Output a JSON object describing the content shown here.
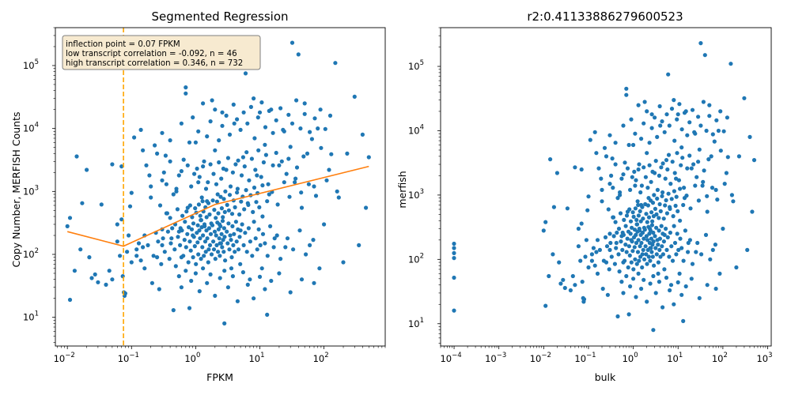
{
  "chart_data": [
    {
      "type": "scatter",
      "title": "Segmented Regression",
      "xlabel": "FPKM",
      "ylabel": "Copy Number, MERFISH Counts",
      "xscale": "log",
      "yscale": "log",
      "xlim": [
        0.0065,
        900
      ],
      "ylim": [
        3.5,
        400000
      ],
      "xticks": [
        {
          "v": 0.01,
          "m": "10",
          "e": "−2"
        },
        {
          "v": 0.1,
          "m": "10",
          "e": "−1"
        },
        {
          "v": 1,
          "m": "10",
          "e": "0"
        },
        {
          "v": 10,
          "m": "10",
          "e": "1"
        },
        {
          "v": 100,
          "m": "10",
          "e": "2"
        }
      ],
      "yticks": [
        {
          "v": 10,
          "m": "10",
          "e": "1"
        },
        {
          "v": 100,
          "m": "10",
          "e": "2"
        },
        {
          "v": 1000,
          "m": "10",
          "e": "3"
        },
        {
          "v": 10000,
          "m": "10",
          "e": "4"
        },
        {
          "v": 100000,
          "m": "10",
          "e": "5"
        }
      ],
      "annotation": [
        "inflection point = 0.07 FPKM",
        "low transcript correlation = -0.092, n = 46",
        "high transcript correlation = 0.346, n = 732"
      ],
      "inflection_x": 0.075,
      "fit_line": [
        [
          0.01,
          230
        ],
        [
          0.075,
          135
        ],
        [
          2,
          620
        ],
        [
          500,
          2500
        ]
      ],
      "colors": {
        "points": "#1f77b4",
        "fit": "#ff7f0e",
        "inflection": "#ffa500",
        "annot_bg": "#f7ead0"
      },
      "grid": false,
      "legend": "none"
    },
    {
      "type": "scatter",
      "title": "r2:0.41133886279600523",
      "xlabel": "bulk",
      "ylabel": "merfish",
      "xscale": "log",
      "yscale": "log",
      "xlim": [
        5e-05,
        1200
      ],
      "ylim": [
        4.5,
        400000
      ],
      "xticks": [
        {
          "v": 0.0001,
          "m": "10",
          "e": "−4"
        },
        {
          "v": 0.001,
          "m": "10",
          "e": "−3"
        },
        {
          "v": 0.01,
          "m": "10",
          "e": "−2"
        },
        {
          "v": 0.1,
          "m": "10",
          "e": "−1"
        },
        {
          "v": 1,
          "m": "10",
          "e": "0"
        },
        {
          "v": 10,
          "m": "10",
          "e": "1"
        },
        {
          "v": 100,
          "m": "10",
          "e": "2"
        },
        {
          "v": 1000,
          "m": "10",
          "e": "3"
        }
      ],
      "yticks": [
        {
          "v": 10,
          "m": "10",
          "e": "1"
        },
        {
          "v": 100,
          "m": "10",
          "e": "2"
        },
        {
          "v": 1000,
          "m": "10",
          "e": "3"
        },
        {
          "v": 10000,
          "m": "10",
          "e": "4"
        },
        {
          "v": 100000,
          "m": "10",
          "e": "5"
        }
      ],
      "colors": {
        "points": "#1f77b4"
      },
      "grid": false,
      "legend": "none"
    }
  ],
  "points": [
    [
      0.0001,
      16
    ],
    [
      0.0001,
      52
    ],
    [
      0.0001,
      105
    ],
    [
      0.0001,
      125
    ],
    [
      0.0001,
      150
    ],
    [
      0.0001,
      175
    ],
    [
      0.01,
      280
    ],
    [
      0.011,
      380
    ],
    [
      0.011,
      19
    ],
    [
      0.013,
      55
    ],
    [
      0.014,
      3600
    ],
    [
      0.016,
      120
    ],
    [
      0.017,
      650
    ],
    [
      0.02,
      2200
    ],
    [
      0.022,
      90
    ],
    [
      0.024,
      42
    ],
    [
      0.027,
      48
    ],
    [
      0.03,
      36
    ],
    [
      0.034,
      620
    ],
    [
      0.04,
      33
    ],
    [
      0.045,
      55
    ],
    [
      0.05,
      40
    ],
    [
      0.05,
      2700
    ],
    [
      0.06,
      160
    ],
    [
      0.06,
      300
    ],
    [
      0.066,
      95
    ],
    [
      0.07,
      360
    ],
    [
      0.07,
      2500
    ],
    [
      0.073,
      45
    ],
    [
      0.076,
      25
    ],
    [
      0.078,
      22
    ],
    [
      0.08,
      24
    ],
    [
      0.085,
      110
    ],
    [
      0.09,
      200
    ],
    [
      0.095,
      580
    ],
    [
      0.1,
      950
    ],
    [
      0.1,
      75
    ],
    [
      0.11,
      7200
    ],
    [
      0.12,
      95
    ],
    [
      0.13,
      150
    ],
    [
      0.14,
      9500
    ],
    [
      0.15,
      130
    ],
    [
      0.16,
      60
    ],
    [
      0.17,
      2600
    ],
    [
      0.19,
      1800
    ],
    [
      0.2,
      800
    ],
    [
      0.21,
      35
    ],
    [
      0.23,
      5400
    ],
    [
      0.25,
      90
    ],
    [
      0.27,
      28
    ],
    [
      0.28,
      600
    ],
    [
      0.3,
      140
    ],
    [
      0.32,
      2000
    ],
    [
      0.34,
      3700
    ],
    [
      0.36,
      450
    ],
    [
      0.4,
      6500
    ],
    [
      0.42,
      180
    ],
    [
      0.45,
      13
    ],
    [
      0.5,
      1100
    ],
    [
      0.55,
      230
    ],
    [
      0.6,
      90
    ],
    [
      0.65,
      3200
    ],
    [
      0.7,
      45000
    ],
    [
      0.7,
      36000
    ],
    [
      0.75,
      550
    ],
    [
      0.8,
      14
    ],
    [
      0.9,
      200
    ],
    [
      1,
      6000
    ],
    [
      1.1,
      1400
    ],
    [
      1.2,
      350
    ],
    [
      1.3,
      2500
    ],
    [
      1.5,
      700
    ],
    [
      1.6,
      120
    ],
    [
      1.8,
      28000
    ],
    [
      2,
      4500
    ],
    [
      2.2,
      900
    ],
    [
      2.4,
      150
    ],
    [
      2.6,
      18000
    ],
    [
      2.8,
      8
    ],
    [
      3,
      2200
    ],
    [
      3.3,
      500
    ],
    [
      3.6,
      60
    ],
    [
      4,
      12000
    ],
    [
      4.5,
      1100
    ],
    [
      5,
      240
    ],
    [
      5.5,
      3500
    ],
    [
      6,
      75000
    ],
    [
      6.5,
      650
    ],
    [
      7,
      40
    ],
    [
      8,
      30000
    ],
    [
      9,
      1800
    ],
    [
      10,
      18000
    ],
    [
      11,
      400
    ],
    [
      12,
      5500
    ],
    [
      13,
      11
    ],
    [
      14,
      900
    ],
    [
      15,
      20000
    ],
    [
      17,
      180
    ],
    [
      20,
      2600
    ],
    [
      23,
      9500
    ],
    [
      25,
      130
    ],
    [
      28,
      3300
    ],
    [
      32,
      230000
    ],
    [
      35,
      1400
    ],
    [
      40,
      150000
    ],
    [
      45,
      550
    ],
    [
      50,
      25000
    ],
    [
      55,
      4000
    ],
    [
      60,
      140
    ],
    [
      70,
      1200
    ],
    [
      80,
      10000
    ],
    [
      100,
      300
    ],
    [
      120,
      2200
    ],
    [
      150,
      110000
    ],
    [
      170,
      800
    ],
    [
      200,
      75
    ],
    [
      230,
      4000
    ],
    [
      300,
      32000
    ],
    [
      350,
      140
    ],
    [
      400,
      8000
    ],
    [
      450,
      550
    ],
    [
      500,
      3500
    ],
    [
      0.25,
      4000
    ],
    [
      0.3,
      1500
    ],
    [
      0.35,
      1300
    ],
    [
      0.45,
      900
    ],
    [
      0.5,
      1000
    ],
    [
      0.55,
      1800
    ],
    [
      0.6,
      2100
    ],
    [
      0.75,
      2600
    ],
    [
      0.85,
      1200
    ],
    [
      0.95,
      1900
    ],
    [
      1.05,
      2300
    ],
    [
      1.15,
      1700
    ],
    [
      1.25,
      800
    ],
    [
      1.35,
      3000
    ],
    [
      1.45,
      1100
    ],
    [
      1.55,
      1400
    ],
    [
      1.7,
      2700
    ],
    [
      1.9,
      1900
    ],
    [
      2.1,
      1300
    ],
    [
      2.3,
      2900
    ],
    [
      2.5,
      1600
    ],
    [
      2.7,
      2300
    ],
    [
      2.9,
      1000
    ],
    [
      3.2,
      3400
    ],
    [
      3.5,
      1200
    ],
    [
      3.8,
      2000
    ],
    [
      4.2,
      2700
    ],
    [
      4.6,
      3100
    ],
    [
      5.2,
      1800
    ],
    [
      5.8,
      2500
    ],
    [
      6.2,
      4200
    ],
    [
      6.8,
      1500
    ],
    [
      7.5,
      3300
    ],
    [
      8.5,
      2200
    ],
    [
      9.5,
      4500
    ],
    [
      10.5,
      1700
    ],
    [
      11.5,
      2900
    ],
    [
      12.5,
      3800
    ],
    [
      13.5,
      1300
    ],
    [
      16,
      2600
    ],
    [
      18,
      4100
    ],
    [
      22,
      3000
    ],
    [
      26,
      1900
    ],
    [
      30,
      5100
    ],
    [
      38,
      2400
    ],
    [
      48,
      3600
    ],
    [
      65,
      6800
    ],
    [
      90,
      4900
    ],
    [
      130,
      3900
    ],
    [
      0.3,
      250
    ],
    [
      0.35,
      450
    ],
    [
      0.4,
      380
    ],
    [
      0.48,
      300
    ],
    [
      0.52,
      520
    ],
    [
      0.58,
      260
    ],
    [
      0.62,
      410
    ],
    [
      0.68,
      330
    ],
    [
      0.72,
      480
    ],
    [
      0.78,
      270
    ],
    [
      0.82,
      600
    ],
    [
      0.88,
      390
    ],
    [
      0.92,
      310
    ],
    [
      0.98,
      540
    ],
    [
      1.02,
      460
    ],
    [
      1.08,
      290
    ],
    [
      1.12,
      620
    ],
    [
      1.18,
      410
    ],
    [
      1.22,
      350
    ],
    [
      1.28,
      700
    ],
    [
      1.32,
      480
    ],
    [
      1.38,
      280
    ],
    [
      1.42,
      560
    ],
    [
      1.48,
      390
    ],
    [
      1.58,
      650
    ],
    [
      1.65,
      430
    ],
    [
      1.75,
      310
    ],
    [
      1.85,
      720
    ],
    [
      1.95,
      510
    ],
    [
      2.05,
      380
    ],
    [
      2.15,
      690
    ],
    [
      2.25,
      450
    ],
    [
      2.35,
      300
    ],
    [
      2.45,
      820
    ],
    [
      2.55,
      540
    ],
    [
      2.65,
      390
    ],
    [
      2.75,
      760
    ],
    [
      2.85,
      470
    ],
    [
      3.1,
      610
    ],
    [
      3.4,
      880
    ],
    [
      3.7,
      440
    ],
    [
      3.9,
      720
    ],
    [
      4.1,
      560
    ],
    [
      4.4,
      960
    ],
    [
      4.8,
      430
    ],
    [
      5.1,
      690
    ],
    [
      5.4,
      830
    ],
    [
      5.7,
      520
    ],
    [
      6.1,
      1050
    ],
    [
      6.6,
      610
    ],
    [
      7.2,
      870
    ],
    [
      7.8,
      470
    ],
    [
      8.2,
      1150
    ],
    [
      8.8,
      680
    ],
    [
      9.2,
      940
    ],
    [
      9.8,
      560
    ],
    [
      11,
      1250
    ],
    [
      13,
      700
    ],
    [
      15.5,
      980
    ],
    [
      19,
      620
    ],
    [
      24,
      1400
    ],
    [
      29,
      820
    ],
    [
      36,
      1600
    ],
    [
      44,
      960
    ],
    [
      58,
      1300
    ],
    [
      75,
      850
    ],
    [
      110,
      1500
    ],
    [
      160,
      1000
    ],
    [
      0.12,
      120
    ],
    [
      0.14,
      80
    ],
    [
      0.16,
      200
    ],
    [
      0.18,
      140
    ],
    [
      0.22,
      95
    ],
    [
      0.24,
      220
    ],
    [
      0.26,
      160
    ],
    [
      0.29,
      70
    ],
    [
      0.31,
      180
    ],
    [
      0.33,
      110
    ],
    [
      0.37,
      230
    ],
    [
      0.39,
      85
    ],
    [
      0.41,
      150
    ],
    [
      0.43,
      260
    ],
    [
      0.47,
      120
    ],
    [
      0.49,
      65
    ],
    [
      0.53,
      190
    ],
    [
      0.57,
      140
    ],
    [
      0.61,
      240
    ],
    [
      0.64,
      95
    ],
    [
      0.67,
      170
    ],
    [
      0.71,
      130
    ],
    [
      0.74,
      210
    ],
    [
      0.77,
      75
    ],
    [
      0.81,
      160
    ],
    [
      0.84,
      115
    ],
    [
      0.87,
      250
    ],
    [
      0.91,
      90
    ],
    [
      0.94,
      190
    ],
    [
      0.97,
      135
    ],
    [
      1.01,
      70
    ],
    [
      1.04,
      220
    ],
    [
      1.07,
      155
    ],
    [
      1.1,
      100
    ],
    [
      1.14,
      240
    ],
    [
      1.17,
      180
    ],
    [
      1.21,
      85
    ],
    [
      1.24,
      270
    ],
    [
      1.27,
      130
    ],
    [
      1.3,
      200
    ],
    [
      1.34,
      95
    ],
    [
      1.37,
      300
    ],
    [
      1.41,
      160
    ],
    [
      1.44,
      110
    ],
    [
      1.47,
      240
    ],
    [
      1.52,
      180
    ],
    [
      1.57,
      75
    ],
    [
      1.62,
      260
    ],
    [
      1.67,
      140
    ],
    [
      1.72,
      210
    ],
    [
      1.77,
      100
    ],
    [
      1.82,
      290
    ],
    [
      1.88,
      160
    ],
    [
      1.93,
      120
    ],
    [
      1.98,
      230
    ],
    [
      2.03,
      85
    ],
    [
      2.08,
      200
    ],
    [
      2.13,
      140
    ],
    [
      2.18,
      320
    ],
    [
      2.23,
      110
    ],
    [
      2.28,
      250
    ],
    [
      2.33,
      180
    ],
    [
      2.38,
      95
    ],
    [
      2.43,
      280
    ],
    [
      2.48,
      150
    ],
    [
      2.53,
      210
    ],
    [
      2.58,
      130
    ],
    [
      2.63,
      340
    ],
    [
      2.68,
      170
    ],
    [
      2.73,
      110
    ],
    [
      2.78,
      260
    ],
    [
      2.83,
      190
    ],
    [
      2.88,
      80
    ],
    [
      3.05,
      230
    ],
    [
      3.15,
      150
    ],
    [
      3.25,
      310
    ],
    [
      3.35,
      120
    ],
    [
      3.45,
      200
    ],
    [
      3.55,
      170
    ],
    [
      3.65,
      90
    ],
    [
      3.75,
      280
    ],
    [
      3.85,
      140
    ],
    [
      3.95,
      210
    ],
    [
      4.05,
      110
    ],
    [
      4.25,
      330
    ],
    [
      4.35,
      160
    ],
    [
      4.55,
      250
    ],
    [
      4.65,
      120
    ],
    [
      4.85,
      190
    ],
    [
      4.95,
      70
    ],
    [
      5.3,
      300
    ],
    [
      5.6,
      140
    ],
    [
      5.9,
      220
    ],
    [
      6.3,
      110
    ],
    [
      6.7,
      260
    ],
    [
      7.1,
      160
    ],
    [
      7.6,
      95
    ],
    [
      8.1,
      330
    ],
    [
      8.6,
      180
    ],
    [
      9.1,
      120
    ],
    [
      9.6,
      250
    ],
    [
      10.2,
      140
    ],
    [
      10.8,
      60
    ],
    [
      11.2,
      210
    ],
    [
      12,
      150
    ],
    [
      13.2,
      95
    ],
    [
      14.5,
      280
    ],
    [
      16.5,
      130
    ],
    [
      18.5,
      200
    ],
    [
      21,
      85
    ],
    [
      27,
      180
    ],
    [
      33,
      120
    ],
    [
      42,
      240
    ],
    [
      52,
      100
    ],
    [
      68,
      170
    ],
    [
      85,
      60
    ],
    [
      0.55,
      45
    ],
    [
      0.6,
      30
    ],
    [
      0.7,
      55
    ],
    [
      0.85,
      38
    ],
    [
      1.0,
      50
    ],
    [
      1.15,
      26
    ],
    [
      1.3,
      60
    ],
    [
      1.5,
      35
    ],
    [
      1.7,
      48
    ],
    [
      2.0,
      22
    ],
    [
      2.4,
      42
    ],
    [
      2.8,
      55
    ],
    [
      3.2,
      30
    ],
    [
      3.8,
      45
    ],
    [
      4.5,
      18
    ],
    [
      5.5,
      52
    ],
    [
      6.5,
      33
    ],
    [
      8,
      20
    ],
    [
      10,
      44
    ],
    [
      12,
      28
    ],
    [
      15,
      38
    ],
    [
      20,
      50
    ],
    [
      30,
      25
    ],
    [
      45,
      40
    ],
    [
      70,
      35
    ],
    [
      0.15,
      4500
    ],
    [
      0.2,
      1200
    ],
    [
      0.3,
      8500
    ],
    [
      0.4,
      3000
    ],
    [
      0.6,
      12000
    ],
    [
      0.8,
      6000
    ],
    [
      0.9,
      15000
    ],
    [
      1.1,
      9000
    ],
    [
      1.3,
      25000
    ],
    [
      1.5,
      7500
    ],
    [
      1.7,
      13000
    ],
    [
      2.0,
      20000
    ],
    [
      2.3,
      6500
    ],
    [
      2.6,
      11000
    ],
    [
      3.0,
      16000
    ],
    [
      3.4,
      8000
    ],
    [
      3.9,
      24000
    ],
    [
      4.4,
      14000
    ],
    [
      5.0,
      9500
    ],
    [
      5.6,
      18000
    ],
    [
      6.4,
      12000
    ],
    [
      7.3,
      22000
    ],
    [
      8.3,
      7000
    ],
    [
      9.4,
      15000
    ],
    [
      10.7,
      26000
    ],
    [
      12.2,
      10500
    ],
    [
      14,
      19000
    ],
    [
      16,
      8500
    ],
    [
      18,
      13500
    ],
    [
      21,
      21000
    ],
    [
      24,
      9000
    ],
    [
      28,
      16500
    ],
    [
      32,
      12000
    ],
    [
      37,
      28000
    ],
    [
      43,
      10000
    ],
    [
      50,
      17000
    ],
    [
      60,
      8800
    ],
    [
      72,
      14500
    ],
    [
      88,
      20000
    ],
    [
      105,
      9800
    ],
    [
      125,
      16000
    ]
  ]
}
